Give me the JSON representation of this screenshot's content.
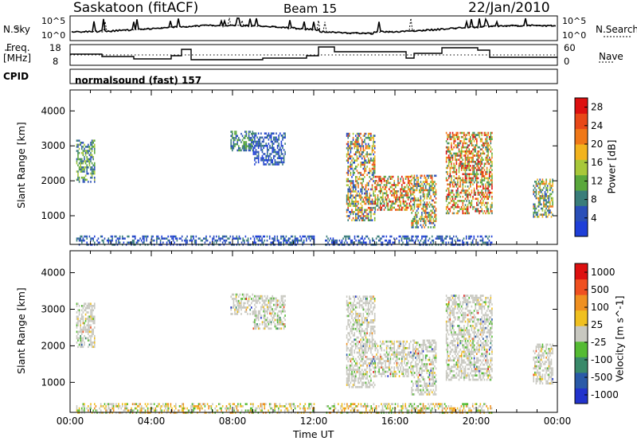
{
  "header": {
    "station": "Saskatoon (fitACF)",
    "beam": "Beam 15",
    "date": "22/Jan/2010"
  },
  "panel_labels": {
    "nsky": "N.Sky",
    "nsearch": "N.Search",
    "freq": "Freq.",
    "freq_unit": "[MHz]",
    "nave": "Nave",
    "cpid": "CPID",
    "cpid_text": "normalsound (fast) 157",
    "noise_ticks": [
      "10^5",
      "10^0"
    ],
    "noise_ticks_right": [
      "10^5",
      "10^0"
    ],
    "freq_ticks": [
      "18",
      "8"
    ],
    "nave_ticks": [
      "60",
      "0"
    ]
  },
  "colors": {
    "power": [
      "#1f3fd8",
      "#2a4fb8",
      "#3a7d7a",
      "#5aa83c",
      "#a8c83a",
      "#f2b31e",
      "#f07818",
      "#e84818",
      "#dd1010"
    ],
    "velocity": [
      "#2233cc",
      "#2a5aa8",
      "#3a8a6a",
      "#55bb33",
      "#c8c8c0",
      "#f0c020",
      "#f09020",
      "#f05020",
      "#dd1010"
    ],
    "gray": "#c8c8c0"
  },
  "chart_data": [
    {
      "type": "heatmap",
      "title": "",
      "xlabel": "Time UT",
      "ylabel": "Slant Range [km]",
      "x_ticks": [
        "00:00",
        "04:00",
        "08:00",
        "12:00",
        "16:00",
        "20:00",
        "00:00"
      ],
      "xlim_hours": [
        0,
        24
      ],
      "ylim_km": [
        180,
        4600
      ],
      "y_ticks": [
        1000,
        2000,
        3000,
        4000
      ],
      "colorbar": {
        "label": "Power [dB]",
        "ticks": [
          "4",
          "8",
          "12",
          "16",
          "20",
          "24",
          "28"
        ],
        "range": [
          0,
          30
        ]
      },
      "scatter_regions": [
        {
          "t0": 0.3,
          "t1": 1.2,
          "r0": 2000,
          "r1": 3200,
          "lvl": [
            1,
            4
          ]
        },
        {
          "t0": 7.9,
          "t1": 9.0,
          "r0": 2900,
          "r1": 3450,
          "lvl": [
            1,
            3
          ]
        },
        {
          "t0": 9.0,
          "t1": 10.6,
          "r0": 2500,
          "r1": 3400,
          "lvl": [
            0,
            2
          ]
        },
        {
          "t0": 13.6,
          "t1": 15.0,
          "r0": 900,
          "r1": 3400,
          "lvl": [
            0,
            7
          ]
        },
        {
          "t0": 15.0,
          "t1": 16.8,
          "r0": 1200,
          "r1": 2200,
          "lvl": [
            2,
            8
          ]
        },
        {
          "t0": 16.8,
          "t1": 18.0,
          "r0": 700,
          "r1": 2200,
          "lvl": [
            1,
            7
          ]
        },
        {
          "t0": 18.5,
          "t1": 20.8,
          "r0": 1100,
          "r1": 3400,
          "lvl": [
            2,
            8
          ]
        },
        {
          "t0": 22.8,
          "t1": 23.8,
          "r0": 1000,
          "r1": 2100,
          "lvl": [
            1,
            6
          ]
        }
      ],
      "near_range": {
        "r0": 200,
        "r1": 450,
        "t0": 0.3,
        "t1": 20.8
      }
    },
    {
      "type": "heatmap",
      "title": "",
      "xlabel": "Time UT",
      "ylabel": "Slant Range [km]",
      "x_ticks": [
        "00:00",
        "04:00",
        "08:00",
        "12:00",
        "16:00",
        "20:00",
        "00:00"
      ],
      "xlim_hours": [
        0,
        24
      ],
      "ylim_km": [
        180,
        4600
      ],
      "y_ticks": [
        1000,
        2000,
        3000,
        4000
      ],
      "colorbar": {
        "label": "Velocity [m s^-1]",
        "ticks": [
          "1000",
          "500",
          "100",
          "25",
          "-25",
          "-100",
          "-500",
          "-1000"
        ]
      },
      "scatter_regions": [
        {
          "t0": 0.3,
          "t1": 1.2,
          "r0": 2000,
          "r1": 3200
        },
        {
          "t0": 7.9,
          "t1": 9.0,
          "r0": 2900,
          "r1": 3450
        },
        {
          "t0": 9.0,
          "t1": 10.6,
          "r0": 2500,
          "r1": 3400
        },
        {
          "t0": 13.6,
          "t1": 15.0,
          "r0": 900,
          "r1": 3400
        },
        {
          "t0": 15.0,
          "t1": 16.8,
          "r0": 1200,
          "r1": 2200
        },
        {
          "t0": 16.8,
          "t1": 18.0,
          "r0": 700,
          "r1": 2200
        },
        {
          "t0": 18.5,
          "t1": 20.8,
          "r0": 1100,
          "r1": 3400
        },
        {
          "t0": 22.8,
          "t1": 23.8,
          "r0": 1000,
          "r1": 2100
        }
      ],
      "near_range": {
        "r0": 200,
        "r1": 450,
        "t0": 0.3,
        "t1": 20.8
      }
    }
  ]
}
